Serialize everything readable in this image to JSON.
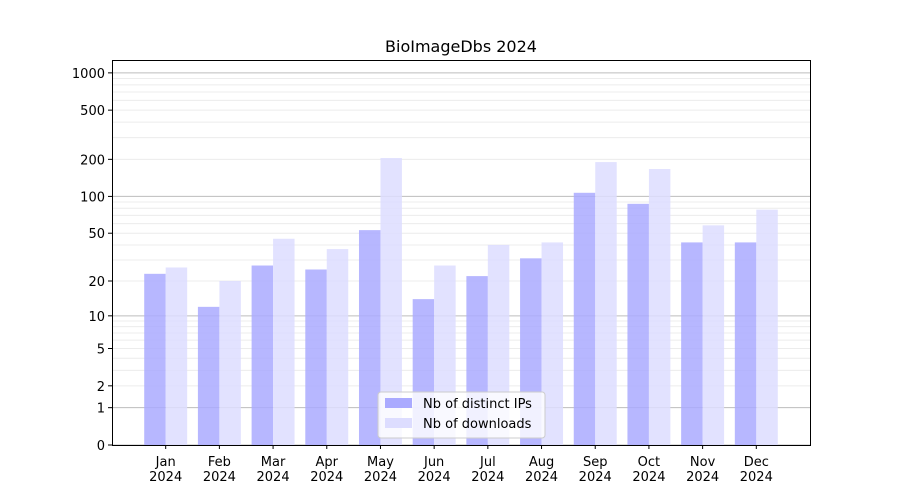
{
  "chart_data": {
    "type": "bar",
    "title": "BioImageDbs 2024",
    "xlabel": "",
    "ylabel": "",
    "yscale": "log10(1+y)",
    "ylim": [
      0,
      1270
    ],
    "yticks": [
      0,
      1,
      2,
      5,
      10,
      20,
      50,
      100,
      200,
      500,
      1000
    ],
    "grid": true,
    "legend_position": "lower-center",
    "categories": [
      [
        "Jan",
        "2024"
      ],
      [
        "Feb",
        "2024"
      ],
      [
        "Mar",
        "2024"
      ],
      [
        "Apr",
        "2024"
      ],
      [
        "May",
        "2024"
      ],
      [
        "Jun",
        "2024"
      ],
      [
        "Jul",
        "2024"
      ],
      [
        "Aug",
        "2024"
      ],
      [
        "Sep",
        "2024"
      ],
      [
        "Oct",
        "2024"
      ],
      [
        "Nov",
        "2024"
      ],
      [
        "Dec",
        "2024"
      ]
    ],
    "series": [
      {
        "name": "Nb of distinct IPs",
        "color": "#aaaaff",
        "values": [
          23,
          12,
          27,
          25,
          53,
          14,
          22,
          31,
          107,
          87,
          42,
          42
        ]
      },
      {
        "name": "Nb of downloads",
        "color": "#ddddff",
        "values": [
          26,
          20,
          45,
          37,
          205,
          27,
          40,
          42,
          190,
          167,
          58,
          78
        ]
      }
    ]
  }
}
